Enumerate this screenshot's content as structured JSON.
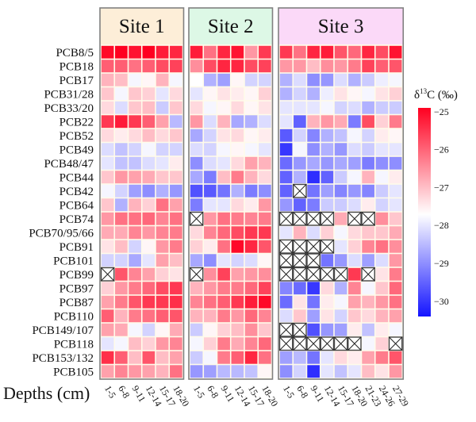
{
  "chart_data": {
    "type": "heatmap",
    "xlabel": "Depths (cm)",
    "colorbar": {
      "label_prefix": "δ",
      "label_sup": "13",
      "label_suffix": "C (‰)",
      "ticks": [
        -25,
        -26,
        -27,
        -28,
        -29,
        -30
      ],
      "range": [
        -30.4,
        -24.9
      ],
      "colors": {
        "high": "#ff0020",
        "mid": "#ffffff",
        "low": "#1414ff"
      }
    },
    "missing_marker": "crossed box",
    "rows": [
      "PCB8/5",
      "PCB18",
      "PCB17",
      "PCB31/28",
      "PCB33/20",
      "PCB22",
      "PCB52",
      "PCB49",
      "PCB48/47",
      "PCB44",
      "PCB42",
      "PCB64",
      "PCB74",
      "PCB70/95/66",
      "PCB91",
      "PCB101",
      "PCB99",
      "PCB97",
      "PCB87",
      "PCB110",
      "PCB149/107",
      "PCB118",
      "PCB153/132",
      "PCB105"
    ],
    "panels": [
      {
        "title": "Site 1",
        "header_color": "#fdeed8",
        "depths": [
          "1-5",
          "6-8",
          "9-11",
          "12-14",
          "15-17",
          "18-20"
        ],
        "values": [
          [
            -25.1,
            -25.0,
            -25.2,
            -25.0,
            -25.3,
            -25.4
          ],
          [
            -26.0,
            -26.0,
            -26.2,
            -26.0,
            -25.8,
            -25.7
          ],
          [
            -26.9,
            -27.0,
            -27.8,
            -27.6,
            -26.9,
            -27.8
          ],
          [
            -27.1,
            -27.8,
            -27.1,
            -27.2,
            -28.0,
            -27.3
          ],
          [
            -27.3,
            -28.1,
            -27.1,
            -27.0,
            -28.3,
            -27.1
          ],
          [
            -25.6,
            -25.3,
            -25.6,
            -26.0,
            -26.7,
            -28.5
          ],
          [
            -27.3,
            -27.5,
            -27.3,
            -27.0,
            -27.3,
            -27.1
          ],
          [
            -28.1,
            -28.4,
            -28.2,
            -27.8,
            -28.2,
            -28.2
          ],
          [
            -28.0,
            -28.4,
            -28.4,
            -28.1,
            -28.0,
            -27.5
          ],
          [
            -27.1,
            -26.6,
            -26.7,
            -26.8,
            -27.1,
            -27.1
          ],
          [
            -27.8,
            -28.2,
            -28.8,
            -29.0,
            -28.6,
            -28.9
          ],
          [
            -27.1,
            -28.6,
            -26.9,
            -27.2,
            -26.2,
            -26.7
          ],
          [
            -26.6,
            -26.2,
            -26.2,
            -26.1,
            -26.4,
            -26.2
          ],
          [
            -26.8,
            -26.8,
            -26.4,
            -26.6,
            -26.4,
            -26.3
          ],
          [
            -27.4,
            -27.0,
            -28.2,
            -27.6,
            -26.6,
            -26.3
          ],
          [
            -28.2,
            -28.2,
            -28.7,
            -28.0,
            -26.7,
            -27.0
          ],
          [
            null,
            -25.9,
            -26.4,
            -26.7,
            -27.2,
            -27.4
          ],
          [
            -27.2,
            -26.6,
            -26.3,
            -26.1,
            -25.8,
            -25.6
          ],
          [
            -26.7,
            -26.3,
            -25.9,
            -25.6,
            -25.6,
            -25.5
          ],
          [
            -26.0,
            -26.9,
            -26.3,
            -26.2,
            -26.0,
            -25.9
          ],
          [
            -26.7,
            -26.8,
            -27.8,
            -28.2,
            -27.6,
            -26.8
          ],
          [
            -28.0,
            -27.8,
            -27.0,
            -27.2,
            -26.6,
            -26.4
          ],
          [
            -25.5,
            -26.0,
            -27.0,
            -25.9,
            -27.0,
            -26.7
          ],
          [
            -26.7,
            -26.4,
            -26.6,
            -26.7,
            -26.9,
            -26.2
          ]
        ]
      },
      {
        "title": "Site 2",
        "header_color": "#ddf8e6",
        "depths": [
          "1-5",
          "6-8",
          "9-11",
          "12-14",
          "15-17",
          "18-20"
        ],
        "values": [
          [
            -25.3,
            -26.2,
            -25.4,
            -25.2,
            -26.6,
            -25.6
          ],
          [
            -26.5,
            -25.8,
            -25.4,
            -25.4,
            -25.8,
            -25.7
          ],
          [
            -27.7,
            -28.6,
            -28.8,
            -27.6,
            -28.2,
            -28.2
          ],
          [
            -28.0,
            -27.6,
            -27.4,
            -27.5,
            -27.6,
            -27.2
          ],
          [
            -27.3,
            -27.8,
            -27.6,
            -27.3,
            -27.6,
            -27.4
          ],
          [
            -26.6,
            -28.1,
            -26.9,
            -28.7,
            -28.6,
            -28.1
          ],
          [
            -28.7,
            -28.2,
            -27.4,
            -27.3,
            -27.6,
            -27.5
          ],
          [
            -28.1,
            -28.2,
            -27.8,
            -27.6,
            -27.8,
            -28.0
          ],
          [
            -29.0,
            -28.1,
            -28.0,
            -27.3,
            -26.7,
            -26.9
          ],
          [
            -28.7,
            -29.2,
            -27.0,
            -26.3,
            -26.9,
            -27.3
          ],
          [
            -29.7,
            -29.6,
            -29.3,
            -28.6,
            -29.2,
            -29.0
          ],
          [
            -29.2,
            -28.0,
            -28.0,
            -27.3,
            -27.5,
            -26.6
          ],
          [
            null,
            -26.6,
            -26.2,
            -26.3,
            -26.4,
            -26.3
          ],
          [
            -27.3,
            -26.4,
            -26.1,
            -25.8,
            -25.6,
            -25.6
          ],
          [
            -27.2,
            -27.5,
            -26.2,
            -25.1,
            -25.4,
            -25.9
          ],
          [
            -28.7,
            -29.0,
            -28.0,
            -28.2,
            -28.1,
            -27.6
          ],
          [
            null,
            -26.5,
            -25.7,
            -26.7,
            -26.6,
            -26.5
          ],
          [
            -26.9,
            -26.6,
            -26.3,
            -26.3,
            -26.1,
            -25.7
          ],
          [
            -26.4,
            -26.2,
            -26.0,
            -25.6,
            -25.3,
            -25.1
          ],
          [
            -26.9,
            -26.9,
            -26.3,
            -26.6,
            -26.1,
            -26.4
          ],
          [
            -28.3,
            -27.6,
            -27.2,
            -27.0,
            -26.5,
            -27.1
          ],
          [
            -27.8,
            -27.2,
            -26.3,
            -26.8,
            -26.4,
            -26.1
          ],
          [
            -28.3,
            -27.8,
            -26.3,
            -26.0,
            -25.4,
            -26.2
          ],
          [
            -28.9,
            -28.8,
            -28.5,
            -28.5,
            -28.4,
            -27.6
          ]
        ]
      },
      {
        "title": "Site 3",
        "header_color": "#fbd9f8",
        "depths": [
          "1-5",
          "6-8",
          "9-11",
          "12-14",
          "15-17",
          "18-20",
          "21-23",
          "24-26",
          "27-29"
        ],
        "values": [
          [
            -25.6,
            -26.2,
            -25.4,
            -25.3,
            -25.9,
            -26.1,
            -25.4,
            -25.8,
            -25.2
          ],
          [
            -26.6,
            -26.6,
            -27.0,
            -26.5,
            -26.6,
            -26.3,
            -25.7,
            -26.0,
            -25.9
          ],
          [
            -28.6,
            -28.1,
            -29.0,
            -28.9,
            -28.1,
            -28.6,
            -28.3,
            -27.9,
            -27.8
          ],
          [
            -28.6,
            -28.2,
            -28.6,
            -27.9,
            -27.4,
            -27.6,
            -27.8,
            -27.4,
            -27.2
          ],
          [
            -28.0,
            -28.0,
            -28.0,
            -27.8,
            -28.2,
            -28.1,
            -28.6,
            -28.3,
            -28.3
          ],
          [
            -28.0,
            -29.5,
            -26.9,
            -26.6,
            -26.8,
            -29.2,
            -25.8,
            -27.2,
            -26.3
          ],
          [
            -29.6,
            -28.2,
            -29.1,
            -28.6,
            -28.4,
            -27.8,
            -28.2,
            -27.5,
            -27.6
          ],
          [
            -30.0,
            -27.8,
            -29.0,
            -28.6,
            -28.9,
            -28.1,
            -28.3,
            -28.0,
            -28.0
          ],
          [
            -29.4,
            -28.9,
            -28.7,
            -28.9,
            -28.7,
            -28.8,
            -29.2,
            -29.0,
            -29.0
          ],
          [
            -29.5,
            -28.6,
            -30.1,
            -29.5,
            -28.3,
            -27.8,
            -26.9,
            -27.8,
            -27.5
          ],
          [
            -29.5,
            null,
            -29.3,
            -28.8,
            -29.1,
            -28.9,
            -29.1,
            -28.3,
            -28.0
          ],
          [
            -28.9,
            -29.5,
            -29.2,
            -28.3,
            -28.3,
            -28.1,
            -27.5,
            -28.2,
            -28.0
          ],
          [
            null,
            null,
            null,
            null,
            -26.8,
            null,
            null,
            -26.5,
            -27.1
          ],
          [
            -28.0,
            -26.9,
            -28.1,
            -27.2,
            -27.8,
            -27.3,
            -27.1,
            -27.1,
            -26.8
          ],
          [
            null,
            null,
            null,
            null,
            -28.0,
            -27.2,
            -26.4,
            -26.2,
            -26.5
          ],
          [
            null,
            null,
            null,
            -29.3,
            -28.9,
            -28.1,
            -28.8,
            -28.1,
            -26.6
          ],
          [
            null,
            null,
            null,
            null,
            null,
            -25.6,
            null,
            -27.4,
            -26.3
          ],
          [
            -29.1,
            -29.4,
            -30.0,
            -27.3,
            -28.6,
            -26.4,
            -27.8,
            -27.1,
            -26.1
          ],
          [
            -29.4,
            -27.4,
            -29.3,
            -27.5,
            -27.8,
            -26.7,
            -26.9,
            -26.6,
            -26.2
          ],
          [
            -28.1,
            -27.1,
            -28.8,
            -27.4,
            -28.2,
            -27.1,
            -27.3,
            -26.9,
            -26.7
          ],
          [
            null,
            null,
            -29.7,
            -28.9,
            -28.8,
            -27.5,
            -28.4,
            -27.5,
            -27.8
          ],
          [
            null,
            null,
            null,
            null,
            null,
            null,
            -27.8,
            -27.2,
            null
          ],
          [
            -28.8,
            -28.5,
            -29.3,
            -28.0,
            -27.3,
            -27.5,
            -26.7,
            -26.3,
            -25.9
          ],
          [
            -29.0,
            -28.2,
            -30.1,
            -28.0,
            -28.4,
            -28.0,
            -27.0,
            -27.4,
            -26.6
          ]
        ]
      }
    ]
  }
}
